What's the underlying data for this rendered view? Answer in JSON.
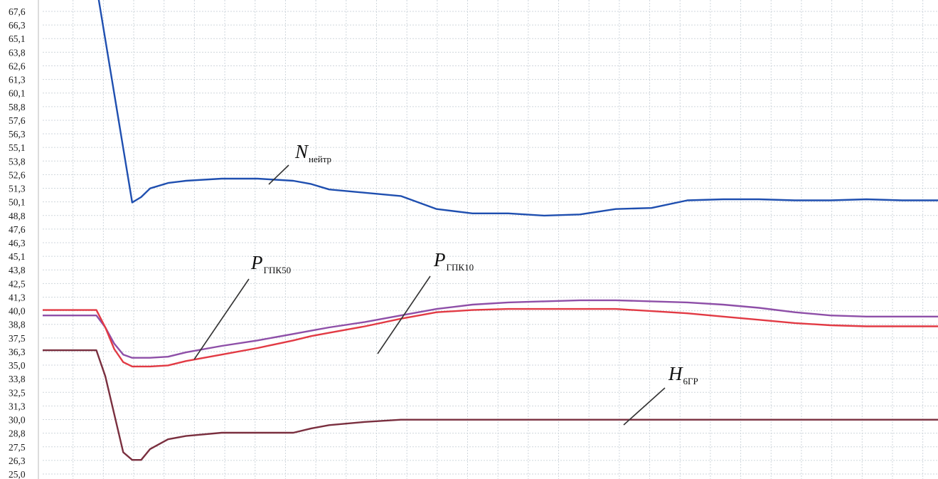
{
  "chart_data": {
    "type": "line",
    "title": "",
    "xlabel": "",
    "ylabel": "",
    "ylim": [
      25.0,
      67.6
    ],
    "grid": true,
    "y_ticks": [
      "25,0",
      "26,3",
      "27,5",
      "28,8",
      "30,0",
      "31,3",
      "32,5",
      "33,8",
      "35,0",
      "36,3",
      "37,5",
      "38,8",
      "40,0",
      "41,3",
      "42,5",
      "43,8",
      "45,1",
      "46,3",
      "47,6",
      "48,8",
      "50,1",
      "51,3",
      "52,6",
      "53,8",
      "55,1",
      "56,3",
      "57,6",
      "58,8",
      "60,1",
      "61,3",
      "62,6",
      "63,8",
      "65,1",
      "66,3",
      "67,6"
    ],
    "x": [
      0,
      4,
      6,
      7,
      8,
      9,
      10,
      11,
      12,
      14,
      16,
      20,
      24,
      28,
      30,
      32,
      36,
      40,
      44,
      48,
      52,
      56,
      60,
      64,
      68,
      72,
      76,
      80,
      84,
      88,
      92,
      96,
      100
    ],
    "series": [
      {
        "name": "N",
        "sub": "нейтр",
        "color": "#1f4fb0",
        "values": [
          null,
          null,
          70.0,
          65.0,
          60.0,
          55.0,
          50.0,
          50.5,
          51.3,
          51.8,
          52.0,
          52.2,
          52.2,
          52.0,
          51.7,
          51.2,
          50.9,
          50.6,
          49.4,
          49.0,
          49.0,
          48.8,
          48.9,
          49.4,
          49.5,
          50.2,
          50.3,
          50.3,
          50.2,
          50.2,
          50.3,
          50.2,
          50.2
        ]
      },
      {
        "name": "P",
        "sub": "ГПК50",
        "color": "#8e4fa8",
        "values": [
          39.6,
          39.6,
          39.6,
          38.5,
          37.0,
          36.0,
          35.7,
          35.7,
          35.7,
          35.8,
          36.2,
          36.8,
          37.3,
          37.9,
          38.2,
          38.5,
          39.0,
          39.6,
          40.2,
          40.6,
          40.8,
          40.9,
          41.0,
          41.0,
          40.9,
          40.8,
          40.6,
          40.3,
          39.9,
          39.6,
          39.5,
          39.5,
          39.5
        ]
      },
      {
        "name": "P",
        "sub": "ГПК10",
        "color": "#e23a44",
        "values": [
          40.1,
          40.1,
          40.1,
          38.5,
          36.5,
          35.3,
          34.9,
          34.9,
          34.9,
          35.0,
          35.4,
          36.0,
          36.6,
          37.3,
          37.7,
          38.0,
          38.6,
          39.3,
          39.9,
          40.1,
          40.2,
          40.2,
          40.2,
          40.2,
          40.0,
          39.8,
          39.5,
          39.2,
          38.9,
          38.7,
          38.6,
          38.6,
          38.6
        ]
      },
      {
        "name": "H",
        "sub": "6ГР",
        "color": "#7a2f3f",
        "values": [
          36.4,
          36.4,
          36.4,
          34.0,
          30.5,
          27.0,
          26.3,
          26.3,
          27.3,
          28.2,
          28.5,
          28.8,
          28.8,
          28.8,
          29.2,
          29.5,
          29.8,
          30.0,
          30.0,
          30.0,
          30.0,
          30.0,
          30.0,
          30.0,
          30.0,
          30.0,
          30.0,
          30.0,
          30.0,
          30.0,
          30.0,
          30.0,
          30.0
        ]
      }
    ],
    "annotations": [
      {
        "main": "N",
        "sub": "нейтр"
      },
      {
        "main": "P",
        "sub": "ГПК50"
      },
      {
        "main": "P",
        "sub": "ГПК10"
      },
      {
        "main": "H",
        "sub": "6ГР"
      }
    ]
  }
}
